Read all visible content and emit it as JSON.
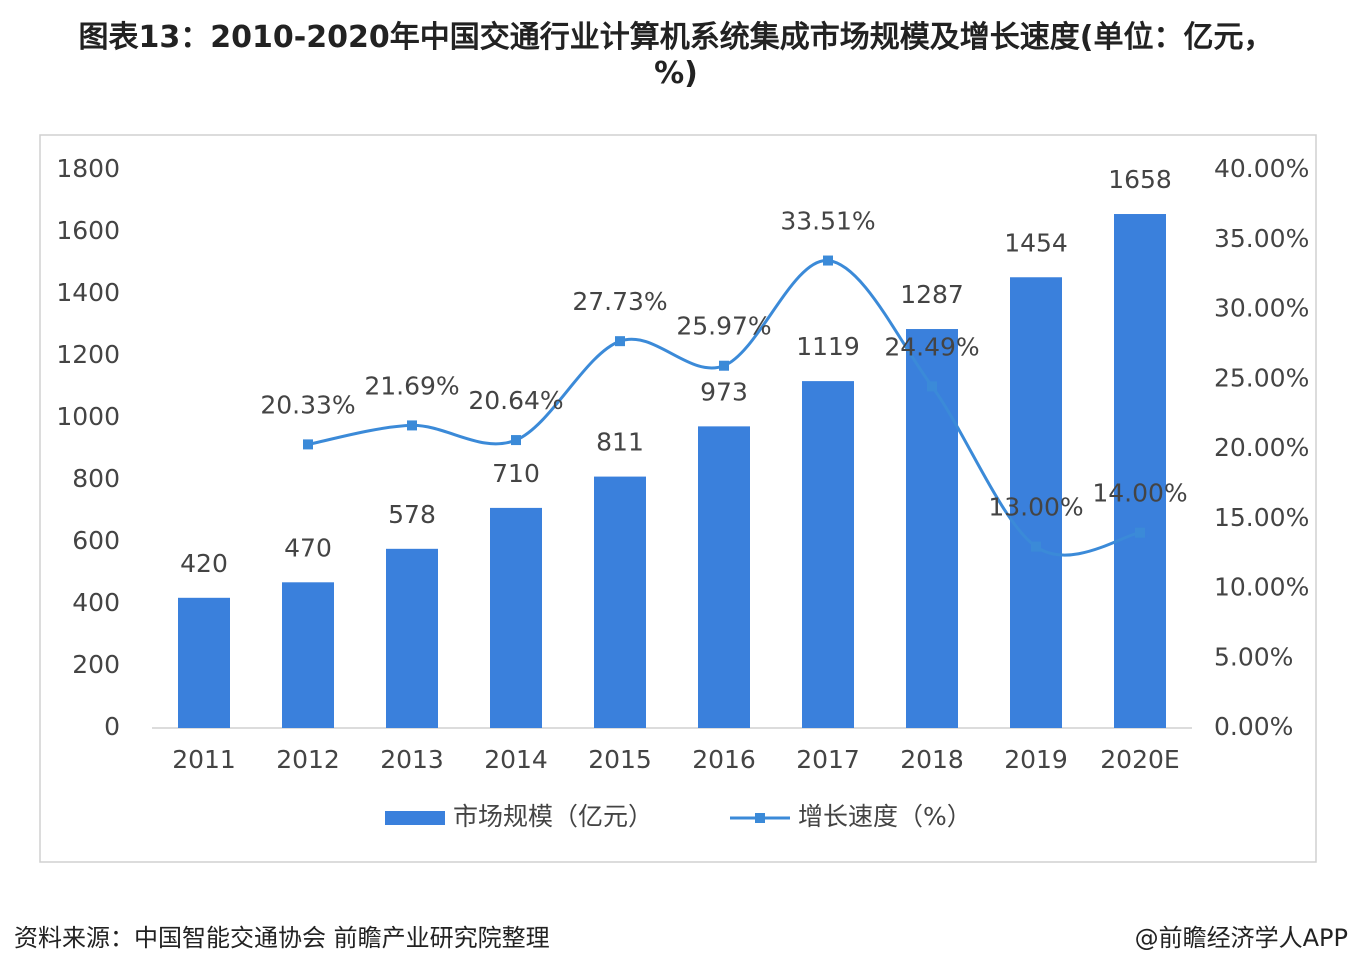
{
  "chart_data": {
    "type": "bar-line",
    "title": "图表13：2010-2020年中国交通行业计算机系统集成市场规模及增长速度(单位：亿元，%)",
    "source": "资料来源：中国智能交通协会 前瞻产业研究院整理",
    "credit": "@前瞻经济学人APP",
    "categories": [
      "2011",
      "2012",
      "2013",
      "2014",
      "2015",
      "2016",
      "2017",
      "2018",
      "2019",
      "2020E"
    ],
    "series": [
      {
        "name": "市场规模（亿元）",
        "color": "#3a80dc",
        "type": "bar",
        "values": [
          420,
          470,
          578,
          710,
          811,
          973,
          1119,
          1287,
          1454,
          1658
        ]
      },
      {
        "name": "增长速度（%）",
        "color": "#3b8ad8",
        "type": "line",
        "axis": "y2",
        "values": [
          null,
          20.33,
          21.69,
          20.64,
          27.73,
          25.97,
          33.51,
          24.49,
          13.0,
          14.0
        ],
        "value_labels": [
          null,
          "20.33%",
          "21.69%",
          "20.64%",
          "27.73%",
          "25.97%",
          "33.51%",
          "24.49%",
          "13.00%",
          "14.00%"
        ]
      }
    ],
    "ylim": [
      0,
      1800
    ],
    "yticks": [
      0,
      200,
      400,
      600,
      800,
      1000,
      1200,
      1400,
      1600,
      1800
    ],
    "y2lim": [
      0,
      40
    ],
    "y2ticks": [
      {
        "value": 0,
        "label": "0.00%"
      },
      {
        "value": 5,
        "label": "5.00%"
      },
      {
        "value": 10,
        "label": "10.00%"
      },
      {
        "value": 15,
        "label": "15.00%"
      },
      {
        "value": 20,
        "label": "20.00%"
      },
      {
        "value": 25,
        "label": "25.00%"
      },
      {
        "value": 30,
        "label": "30.00%"
      },
      {
        "value": 35,
        "label": "35.00%"
      },
      {
        "value": 40,
        "label": "40.00%"
      }
    ],
    "legend": "bottom"
  }
}
